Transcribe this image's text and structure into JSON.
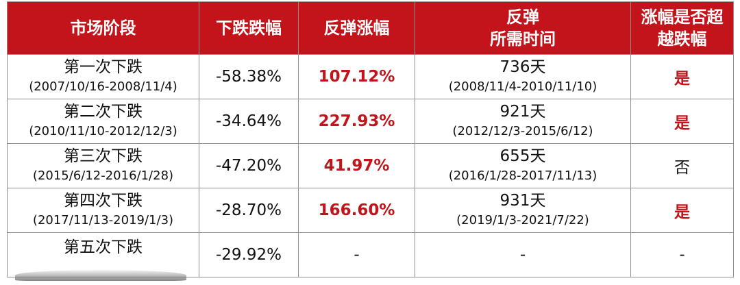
{
  "headers": {
    "stage": "市场阶段",
    "drop": "下跌跌幅",
    "rebound": "反弹涨幅",
    "time_line1": "反弹",
    "time_line2": "所需时间",
    "exceed_line1": "涨幅是否超",
    "exceed_line2": "越跌幅"
  },
  "rows": [
    {
      "name": "第一次下跌",
      "range": "(2007/10/16-2008/11/4)",
      "drop": "-58.38%",
      "rebound": "107.12%",
      "days": "736天",
      "days_range": "(2008/11/4-2010/11/10)",
      "exceed": "是"
    },
    {
      "name": "第二次下跌",
      "range": "(2010/11/10-2012/12/3)",
      "drop": "-34.64%",
      "rebound": "227.93%",
      "days": "921天",
      "days_range": "(2012/12/3-2015/6/12)",
      "exceed": "是"
    },
    {
      "name": "第三次下跌",
      "range": "(2015/6/12-2016/1/28)",
      "drop": "-47.20%",
      "rebound": "41.97%",
      "days": "655天",
      "days_range": "(2016/1/28-2017/11/13)",
      "exceed": "否"
    },
    {
      "name": "第四次下跌",
      "range": "(2017/11/13-2019/1/3)",
      "drop": "-28.70%",
      "rebound": "166.60%",
      "days": "931天",
      "days_range": "(2019/1/3-2021/7/22)",
      "exceed": "是"
    },
    {
      "name": "第五次下跌",
      "range": "",
      "drop": "-29.92%",
      "rebound": "-",
      "days": "-",
      "days_range": "",
      "exceed": "-"
    }
  ],
  "colors": {
    "header_bg": "#c3141b",
    "highlight_text": "#c3141b",
    "border": "#8f8f8f"
  }
}
